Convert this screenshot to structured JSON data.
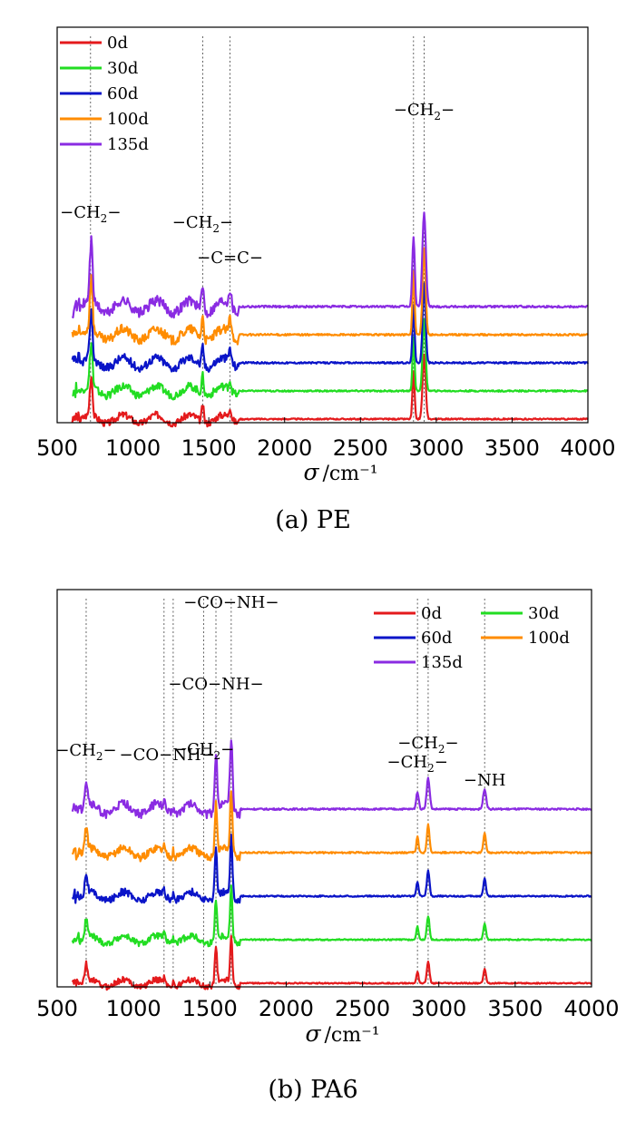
{
  "chart_data": [
    {
      "type": "line",
      "caption": "(a)  PE",
      "xlabel_symbol": "σ",
      "xlabel_unit": "/cm⁻¹",
      "xlim": [
        500,
        4000
      ],
      "xticks": [
        "500",
        "1000",
        "1500",
        "2000",
        "2500",
        "3000",
        "3500",
        "4000"
      ],
      "grid": false,
      "legend": "top-left",
      "series": [
        {
          "name": "0d",
          "color": "#e41a1c",
          "offset": 0,
          "peaks": [
            [
              720,
              1.0,
              10
            ],
            [
              730,
              0.9,
              8
            ],
            [
              1460,
              0.6,
              10
            ],
            [
              1640,
              0.4,
              10
            ],
            [
              2850,
              1.7,
              10
            ],
            [
              2920,
              2.3,
              14
            ]
          ]
        },
        {
          "name": "30d",
          "color": "#22dd22",
          "offset": 1,
          "peaks": [
            [
              720,
              1.0,
              10
            ],
            [
              730,
              0.9,
              8
            ],
            [
              1460,
              0.6,
              10
            ],
            [
              1640,
              0.3,
              10
            ],
            [
              2850,
              1.7,
              10
            ],
            [
              2920,
              2.3,
              14
            ]
          ]
        },
        {
          "name": "60d",
          "color": "#0a14c8",
          "offset": 2,
          "peaks": [
            [
              720,
              1.0,
              10
            ],
            [
              730,
              0.9,
              8
            ],
            [
              1460,
              0.6,
              10
            ],
            [
              1640,
              0.4,
              10
            ],
            [
              2850,
              1.7,
              10
            ],
            [
              2920,
              2.3,
              14
            ]
          ]
        },
        {
          "name": "100d",
          "color": "#ff8c00",
          "offset": 3,
          "peaks": [
            [
              720,
              1.0,
              10
            ],
            [
              730,
              0.9,
              8
            ],
            [
              1460,
              0.6,
              10
            ],
            [
              1640,
              0.4,
              10
            ],
            [
              2850,
              1.7,
              10
            ],
            [
              2920,
              2.3,
              14
            ]
          ]
        },
        {
          "name": "135d",
          "color": "#8a2be2",
          "offset": 4,
          "peaks": [
            [
              720,
              1.0,
              10
            ],
            [
              730,
              0.9,
              8
            ],
            [
              1460,
              0.6,
              10
            ],
            [
              1640,
              0.4,
              10
            ],
            [
              2850,
              1.7,
              10
            ],
            [
              2920,
              2.3,
              14
            ]
          ]
        }
      ],
      "guides": [
        720,
        1460,
        1640,
        2850,
        2920
      ],
      "annotations": [
        {
          "main": "−CH",
          "sub": "2",
          "tail": "−",
          "x": 720
        },
        {
          "main": "−CH",
          "sub": "2",
          "tail": "−",
          "x": 1460
        },
        {
          "main": "−C=C−",
          "sub": "",
          "tail": "",
          "x": 1640
        },
        {
          "main": "−CH",
          "sub": "2",
          "tail": "−",
          "x": 2920
        }
      ]
    },
    {
      "type": "line",
      "caption": "(b)  PA6",
      "xlabel_symbol": "σ",
      "xlabel_unit": "/cm⁻¹",
      "xlim": [
        500,
        4000
      ],
      "xticks": [
        "500",
        "1000",
        "1500",
        "2000",
        "2500",
        "3000",
        "3500",
        "4000"
      ],
      "grid": false,
      "legend": "top-right",
      "series": [
        {
          "name": "0d",
          "color": "#e41a1c",
          "offset": 0,
          "peaks": [
            [
              690,
              0.7,
              12
            ],
            [
              1200,
              0.2,
              8
            ],
            [
              1260,
              0.2,
              8
            ],
            [
              1540,
              1.6,
              10
            ],
            [
              1640,
              2.0,
              10
            ],
            [
              2860,
              0.5,
              10
            ],
            [
              2930,
              0.9,
              12
            ],
            [
              3300,
              0.6,
              12
            ]
          ]
        },
        {
          "name": "30d",
          "color": "#22dd22",
          "offset": 1,
          "peaks": [
            [
              690,
              0.7,
              12
            ],
            [
              1200,
              0.2,
              8
            ],
            [
              1260,
              0.2,
              8
            ],
            [
              1540,
              1.6,
              10
            ],
            [
              1640,
              2.0,
              10
            ],
            [
              2860,
              0.5,
              10
            ],
            [
              2930,
              0.9,
              12
            ],
            [
              3300,
              0.6,
              12
            ]
          ]
        },
        {
          "name": "60d",
          "color": "#0a14c8",
          "offset": 2,
          "peaks": [
            [
              690,
              0.7,
              12
            ],
            [
              1200,
              0.2,
              8
            ],
            [
              1260,
              0.2,
              8
            ],
            [
              1540,
              1.6,
              10
            ],
            [
              1640,
              2.0,
              10
            ],
            [
              2860,
              0.5,
              10
            ],
            [
              2930,
              0.9,
              12
            ],
            [
              3300,
              0.6,
              12
            ]
          ]
        },
        {
          "name": "100d",
          "color": "#ff8c00",
          "offset": 3,
          "peaks": [
            [
              690,
              0.7,
              12
            ],
            [
              1200,
              0.2,
              8
            ],
            [
              1260,
              0.2,
              8
            ],
            [
              1540,
              1.6,
              10
            ],
            [
              1640,
              2.0,
              10
            ],
            [
              2860,
              0.5,
              10
            ],
            [
              2930,
              0.9,
              12
            ],
            [
              3300,
              0.6,
              12
            ]
          ]
        },
        {
          "name": "135d",
          "color": "#8a2be2",
          "offset": 4,
          "peaks": [
            [
              690,
              0.7,
              12
            ],
            [
              1200,
              0.2,
              8
            ],
            [
              1260,
              0.2,
              8
            ],
            [
              1540,
              1.6,
              10
            ],
            [
              1640,
              2.0,
              10
            ],
            [
              2860,
              0.5,
              10
            ],
            [
              2930,
              0.9,
              12
            ],
            [
              3300,
              0.6,
              12
            ]
          ]
        }
      ],
      "guides": [
        690,
        1200,
        1260,
        1460,
        1540,
        1640,
        2860,
        2930,
        3300
      ],
      "annotations": [
        {
          "main": "−CH",
          "sub": "2",
          "tail": "−",
          "x": 690
        },
        {
          "main": "−CO−NH−",
          "sub": "",
          "tail": "",
          "x": 1220
        },
        {
          "main": "−CH",
          "sub": "2",
          "tail": "−",
          "x": 1460
        },
        {
          "main": "−CO−NH−",
          "sub": "",
          "tail": "",
          "x": 1540
        },
        {
          "main": "−CO−NH−",
          "sub": "",
          "tail": "",
          "x": 1640
        },
        {
          "main": "−CH",
          "sub": "2",
          "tail": "−",
          "x": 2860
        },
        {
          "main": "−CH",
          "sub": "2",
          "tail": "−",
          "x": 2930
        },
        {
          "main": "−NH",
          "sub": "",
          "tail": "",
          "x": 3300
        }
      ]
    }
  ]
}
